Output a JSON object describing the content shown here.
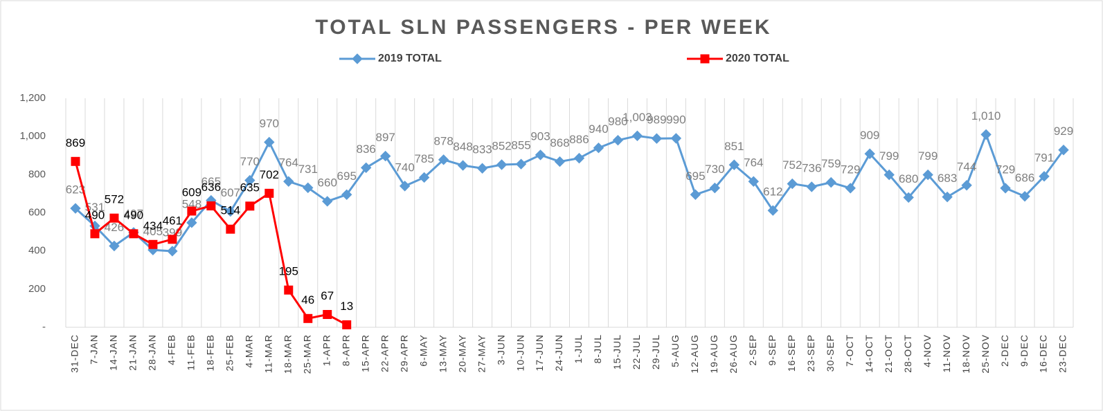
{
  "chart_data": {
    "type": "line",
    "title": "TOTAL SLN PASSENGERS  - PER WEEK",
    "categories": [
      "31-DEC",
      "7-JAN",
      "14-JAN",
      "21-JAN",
      "28-JAN",
      "4-FEB",
      "11-FEB",
      "18-FEB",
      "25-FEB",
      "4-MAR",
      "11-MAR",
      "18-MAR",
      "25-MAR",
      "1-APR",
      "8-APR",
      "15-APR",
      "22-APR",
      "29-APR",
      "6-MAY",
      "13-MAY",
      "20-MAY",
      "27-MAY",
      "3-JUN",
      "10-JUN",
      "17-JUN",
      "24-JUN",
      "1-JUL",
      "8-JUL",
      "15-JUL",
      "22-JUL",
      "29-JUL",
      "5-AUG",
      "12-AUG",
      "19-AUG",
      "26-AUG",
      "2-SEP",
      "9-SEP",
      "16-SEP",
      "23-SEP",
      "30-SEP",
      "7-OCT",
      "14-OCT",
      "21-OCT",
      "28-OCT",
      "4-NOV",
      "11-NOV",
      "18-NOV",
      "25-NOV",
      "2-DEC",
      "9-DEC",
      "16-DEC",
      "23-DEC"
    ],
    "series": [
      {
        "name": "2019 TOTAL",
        "color": "#5b9bd5",
        "marker": "diamond",
        "label_color": "#7f7f7f",
        "values": [
          623,
          531,
          426,
          497,
          405,
          399,
          548,
          665,
          607,
          770,
          970,
          764,
          731,
          660,
          695,
          836,
          897,
          740,
          785,
          878,
          848,
          833,
          852,
          855,
          903,
          868,
          886,
          940,
          980,
          1003,
          989,
          990,
          695,
          730,
          851,
          764,
          612,
          752,
          736,
          759,
          729,
          909,
          799,
          680,
          799,
          683,
          744,
          1010,
          729,
          686,
          791,
          929
        ],
        "value_labels": [
          "623",
          "531",
          "426",
          "497",
          "405",
          "399",
          "548",
          "665",
          "607",
          "770",
          "970",
          "764",
          "731",
          "660",
          "695",
          "836",
          "897",
          "740",
          "785",
          "878",
          "848",
          "833",
          "852",
          "855",
          "903",
          "868",
          "886",
          "940",
          "980",
          "1,003",
          "989",
          "990",
          "695",
          "730",
          "851",
          "764",
          "612",
          "752",
          "736",
          "759",
          "729",
          "909",
          "799",
          "680",
          "799",
          "683",
          "744",
          "1,010",
          "729",
          "686",
          "791",
          "929"
        ]
      },
      {
        "name": "2020 TOTAL",
        "color": "#ff0000",
        "marker": "square",
        "label_color": "#000000",
        "values": [
          869,
          490,
          572,
          490,
          434,
          461,
          609,
          636,
          514,
          635,
          702,
          195,
          46,
          67,
          13,
          null,
          null,
          null,
          null,
          null,
          null,
          null,
          null,
          null,
          null,
          null,
          null,
          null,
          null,
          null,
          null,
          null,
          null,
          null,
          null,
          null,
          null,
          null,
          null,
          null,
          null,
          null,
          null,
          null,
          null,
          null,
          null,
          null,
          null,
          null,
          null,
          null
        ]
      }
    ],
    "ylim": [
      0,
      1200
    ],
    "yticks": [
      {
        "value": 0,
        "label": "-"
      },
      200,
      400,
      600,
      800,
      {
        "value": 1000,
        "label": "1,000"
      },
      {
        "value": 1200,
        "label": "1,200"
      }
    ],
    "grid": "vertical",
    "legend": "top"
  }
}
